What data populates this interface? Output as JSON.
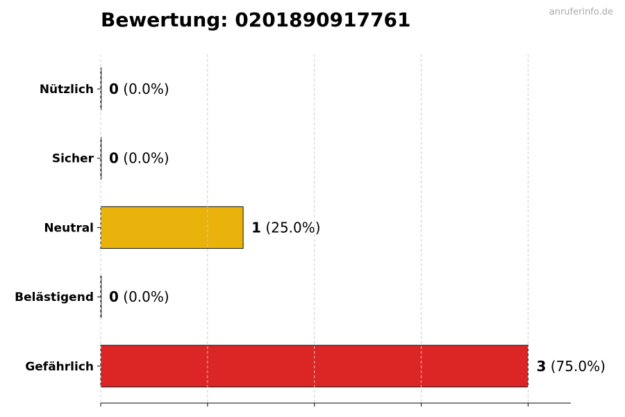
{
  "title": "Bewertung: 0201890917761",
  "watermark": "anruferinfo.de",
  "chart_data": {
    "type": "bar",
    "orientation": "horizontal",
    "title": "Bewertung: 0201890917761",
    "categories": [
      "Nützlich",
      "Sicher",
      "Neutral",
      "Belästigend",
      "Gefährlich"
    ],
    "values": [
      0,
      0,
      1,
      0,
      3
    ],
    "labels": [
      "(0.0%)",
      "(0.0%)",
      "(25.0%)",
      "(0.0%)",
      "(75.0%)"
    ],
    "colors": [
      "#2e9e4f",
      "#3b82f6",
      "#e9b30c",
      "#f97316",
      "#dc2626"
    ],
    "xlim": [
      0,
      3.3
    ],
    "xticks": [
      0,
      0.75,
      1.5,
      2.25,
      3
    ],
    "xtick_labels_shown": false,
    "grid": "x, dashed",
    "xlabel": "",
    "ylabel": ""
  }
}
